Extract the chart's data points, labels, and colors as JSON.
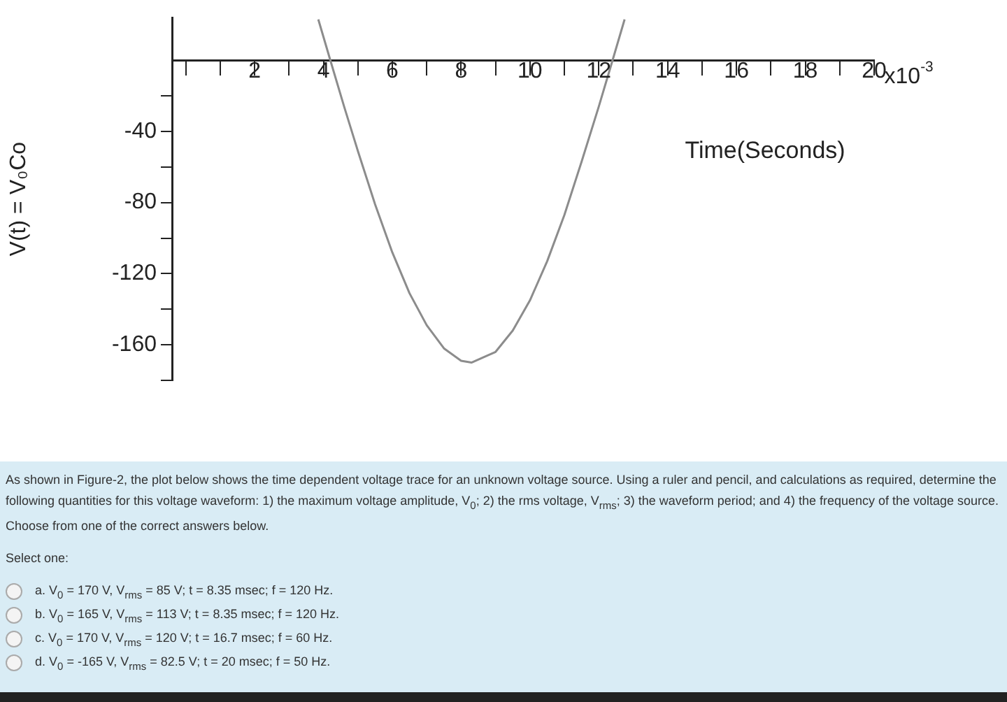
{
  "chart_data": {
    "type": "line",
    "ylabel": "V(t) = V₀Co",
    "xlabel": "Time(Seconds)",
    "x": [
      3.85,
      4.2,
      4.6,
      5,
      5.5,
      6,
      6.5,
      7,
      7.5,
      8,
      8.3,
      9,
      9.5,
      10,
      10.5,
      11,
      11.5,
      12,
      12.2,
      12.4,
      12.75
    ],
    "series": [
      {
        "color": "#8c8c8c",
        "values": [
          23,
          0,
          -26,
          -51,
          -81,
          -108,
          -131,
          -149,
          -162,
          -169,
          -170,
          -164,
          -152,
          -135,
          -113,
          -87,
          -57,
          -26,
          -13,
          0,
          23
        ]
      }
    ],
    "xlim": [
      -0.4,
      20
    ],
    "xticks": [
      {
        "value": 0,
        "label": null
      },
      {
        "value": 1,
        "label": null
      },
      2,
      {
        "value": 3,
        "label": null
      },
      4,
      {
        "value": 5,
        "label": null
      },
      6,
      {
        "value": 7,
        "label": null
      },
      8,
      {
        "value": 9,
        "label": null
      },
      10,
      {
        "value": 11,
        "label": null
      },
      12,
      {
        "value": 13,
        "label": null
      },
      14,
      {
        "value": 15,
        "label": null
      },
      16,
      {
        "value": 17,
        "label": null
      },
      18,
      {
        "value": 19,
        "label": null
      },
      20
    ],
    "ylim": [
      -180,
      24
    ],
    "yticks": [
      {
        "value": -20,
        "label": null
      },
      -40,
      {
        "value": -60,
        "label": null
      },
      -80,
      {
        "value": -100,
        "label": null
      },
      -120,
      {
        "value": -140,
        "label": null
      },
      -160,
      {
        "value": -180,
        "label": null
      }
    ],
    "grid": false,
    "legend": false,
    "marker": "none",
    "line_style": "solid",
    "annotations": [
      "x10$^{-3}$",
      "As shown in Figure-2, the plot below shows the time dependent voltage trace for an unknown voltage source. Using a ruler and pencil, and calculations as required, determine the following quantities for this voltage waveform: 1) the maximum voltage amplitude, V$_{0}$; 2) the rms voltage, V$_{rms}$; 3) the waveform period; and 4) the frequency of the voltage source. Choose from one of the correct answers below.",
      "Select one:",
      "a. V$_{0}$ = 170 V, V$_{rms}$ = 85 V; t = 8.35 msec; f = 120 Hz.",
      "b. V$_{0}$ = 165 V, V$_{rms}$ = 113 V; t = 8.35 msec; f = 120 Hz.",
      "c. V$_{0}$ = 170 V, V$_{rms}$ = 120 V; t = 16.7 msec; f = 60 Hz.",
      "d. V$_{0}$ = -165 V, V$_{rms}$ = 82.5 V; t = 20 msec; f = 50 Hz."
    ]
  }
}
